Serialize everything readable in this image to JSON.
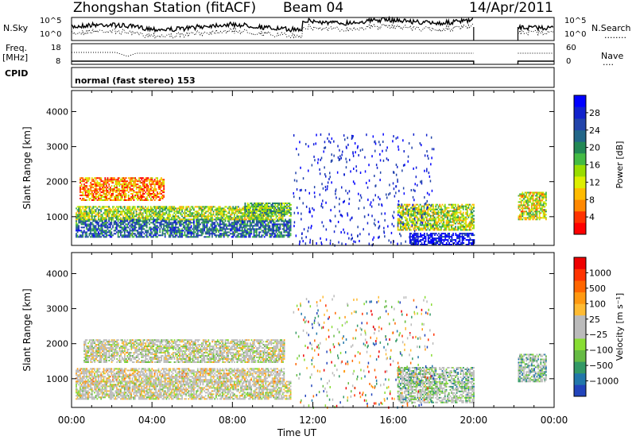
{
  "header": {
    "title": "Zhongshan Station (fitACF)",
    "beam": "Beam 04",
    "date": "14/Apr/2011"
  },
  "strip": {
    "nsky_label": "N.Sky",
    "nsearch_label": "N.Search",
    "nsearch_style": "........",
    "freq_label_1": "Freq.",
    "freq_label_2": "[MHz]",
    "nave_label": "Nave",
    "nave_style": "....",
    "cpid_label": "CPID",
    "cpid_text": "normal (fast stereo) 153",
    "noise_ticks_left": [
      "10^5",
      "10^0"
    ],
    "noise_ticks_right": [
      "10^5",
      "10^0"
    ],
    "freq_ticks": [
      "18",
      "8"
    ],
    "nave_ticks": [
      "60",
      "0"
    ]
  },
  "chart_data": [
    {
      "type": "heatmap",
      "panel": "power",
      "ylabel": "Slant Range [km]",
      "ylim": [
        180,
        4600
      ],
      "yticks": [
        "4000",
        "3000",
        "2000",
        "1000"
      ],
      "xlim_hours": [
        0,
        24
      ],
      "colorbar": {
        "label": "Power [dB]",
        "ticks": [
          "28",
          "24",
          "20",
          "16",
          "12",
          "8",
          "4"
        ],
        "colors": [
          "#ff0000",
          "#ff3300",
          "#ff8800",
          "#ffbb00",
          "#ddee00",
          "#99dd00",
          "#44bb44",
          "#228855",
          "#226688",
          "#2244aa",
          "#1122cc",
          "#0000ff"
        ]
      },
      "regions": [
        {
          "t0": 0.2,
          "t1": 10.9,
          "r0": 400,
          "r1": 900,
          "level": 0.72
        },
        {
          "t0": 0.2,
          "t1": 10.6,
          "r0": 900,
          "r1": 1300,
          "level": 0.45
        },
        {
          "t0": 0.4,
          "t1": 4.6,
          "r0": 1450,
          "r1": 2100,
          "level": 0.22
        },
        {
          "t0": 8.6,
          "t1": 10.9,
          "r0": 1000,
          "r1": 1400,
          "level": 0.55
        },
        {
          "t0": 16.2,
          "t1": 20.0,
          "r0": 600,
          "r1": 1350,
          "level": 0.42
        },
        {
          "t0": 16.8,
          "t1": 20.0,
          "r0": 180,
          "r1": 500,
          "level": 0.96
        },
        {
          "t0": 22.2,
          "t1": 23.6,
          "r0": 900,
          "r1": 1700,
          "level": 0.38
        }
      ]
    },
    {
      "type": "heatmap",
      "panel": "velocity",
      "ylabel": "Slant Range [km]",
      "xlabel": "Time UT",
      "ylim": [
        180,
        4600
      ],
      "yticks": [
        "4000",
        "3000",
        "2000",
        "1000"
      ],
      "xticks": [
        "00:00",
        "04:00",
        "08:00",
        "12:00",
        "16:00",
        "20:00",
        "00:00"
      ],
      "xlim_hours": [
        0,
        24
      ],
      "colorbar": {
        "label": "Velocity [m s⁻¹]",
        "ticks": [
          "1000",
          "500",
          "100",
          "25",
          "−25",
          "−100",
          "−500",
          "−1000"
        ],
        "colors": [
          "#2244bb",
          "#2277aa",
          "#339966",
          "#66bb44",
          "#88dd33",
          "#bbbbbb",
          "#bbbbbb",
          "#ffbb33",
          "#ff9911",
          "#ff6600",
          "#ff3300",
          "#ee0000"
        ]
      },
      "regions": [
        {
          "t0": 0.2,
          "t1": 10.9,
          "r0": 400,
          "r1": 900,
          "level": 0.5
        },
        {
          "t0": 0.2,
          "t1": 10.6,
          "r0": 900,
          "r1": 1300,
          "level": 0.55
        },
        {
          "t0": 0.6,
          "t1": 10.6,
          "r0": 1450,
          "r1": 2100,
          "level": 0.48
        },
        {
          "t0": 16.2,
          "t1": 20.0,
          "r0": 300,
          "r1": 1300,
          "level": 0.35
        },
        {
          "t0": 22.2,
          "t1": 23.6,
          "r0": 900,
          "r1": 1700,
          "level": 0.3
        }
      ]
    }
  ]
}
